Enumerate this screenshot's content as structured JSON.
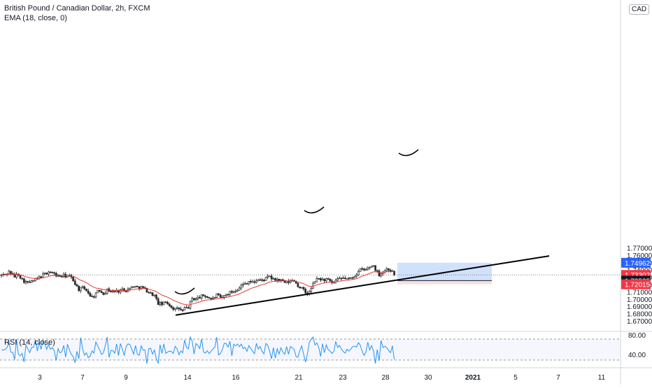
{
  "header": {
    "title": "British Pound / Canadian Dollar, 2h, FXCM",
    "indicator": "EMA (18, close, 0)",
    "currency": "CAD"
  },
  "rsi": {
    "label": "RSI (14, close)"
  },
  "colors": {
    "up": "#26a69a",
    "down": "#333333",
    "candle": "#2b2b2b",
    "ema": "#e53935",
    "rsi": "#2196f3",
    "profit_zone": "#c8dcfc",
    "loss_zone": "#fadcdc",
    "target_tag": "#2962ff",
    "stop_tag": "#f23645",
    "price_tag": "#f23645",
    "entry_tag": "#131722"
  },
  "chart_data": {
    "type": "candlestick",
    "title": "British Pound / Canadian Dollar, 2h, FXCM",
    "y_unit": "CAD",
    "ylim": [
      1.665,
      1.775
    ],
    "y_ticks": [
      "1.77000",
      "1.76000",
      "1.75000",
      "1.74000",
      "1.73000",
      "1.72000",
      "1.71000",
      "1.70000",
      "1.69000",
      "1.68000",
      "1.67000"
    ],
    "x_ticks": [
      "3",
      "7",
      "9",
      "14",
      "16",
      "21",
      "23",
      "28",
      "30",
      "2021",
      "5",
      "7",
      "11"
    ],
    "grid": false,
    "price_tags": {
      "target": "1.74962",
      "last": "1.73302",
      "countdown": "01:48",
      "entry": "1.72525",
      "stop": "1.72015"
    },
    "price_path": [
      [
        0,
        1.732
      ],
      [
        8,
        1.734
      ],
      [
        14,
        1.738
      ],
      [
        20,
        1.73
      ],
      [
        26,
        1.735
      ],
      [
        32,
        1.726
      ],
      [
        40,
        1.722
      ],
      [
        46,
        1.724
      ],
      [
        54,
        1.728
      ],
      [
        62,
        1.733
      ],
      [
        70,
        1.738
      ],
      [
        76,
        1.735
      ],
      [
        84,
        1.731
      ],
      [
        92,
        1.732
      ],
      [
        100,
        1.731
      ],
      [
        106,
        1.724
      ],
      [
        112,
        1.713
      ],
      [
        118,
        1.715
      ],
      [
        124,
        1.712
      ],
      [
        128,
        1.706
      ],
      [
        132,
        1.702
      ],
      [
        136,
        1.707
      ],
      [
        142,
        1.712
      ],
      [
        148,
        1.708
      ],
      [
        154,
        1.713
      ],
      [
        160,
        1.71
      ],
      [
        168,
        1.711
      ],
      [
        176,
        1.713
      ],
      [
        184,
        1.713
      ],
      [
        190,
        1.718
      ],
      [
        196,
        1.716
      ],
      [
        202,
        1.716
      ],
      [
        208,
        1.713
      ],
      [
        214,
        1.708
      ],
      [
        220,
        1.706
      ],
      [
        226,
        1.694
      ],
      [
        232,
        1.693
      ],
      [
        238,
        1.696
      ],
      [
        244,
        1.69
      ],
      [
        250,
        1.686
      ],
      [
        256,
        1.687
      ],
      [
        260,
        1.683
      ],
      [
        264,
        1.687
      ],
      [
        270,
        1.689
      ],
      [
        274,
        1.701
      ],
      [
        280,
        1.7
      ],
      [
        286,
        1.703
      ],
      [
        292,
        1.705
      ],
      [
        298,
        1.702
      ],
      [
        304,
        1.7
      ],
      [
        310,
        1.706
      ],
      [
        316,
        1.7
      ],
      [
        320,
        1.704
      ],
      [
        326,
        1.708
      ],
      [
        332,
        1.71
      ],
      [
        338,
        1.713
      ],
      [
        344,
        1.718
      ],
      [
        350,
        1.721
      ],
      [
        356,
        1.725
      ],
      [
        362,
        1.722
      ],
      [
        368,
        1.727
      ],
      [
        374,
        1.725
      ],
      [
        380,
        1.728
      ],
      [
        386,
        1.731
      ],
      [
        390,
        1.726
      ],
      [
        396,
        1.727
      ],
      [
        402,
        1.725
      ],
      [
        408,
        1.722
      ],
      [
        414,
        1.724
      ],
      [
        420,
        1.726
      ],
      [
        426,
        1.718
      ],
      [
        432,
        1.714
      ],
      [
        438,
        1.707
      ],
      [
        442,
        1.709
      ],
      [
        446,
        1.717
      ],
      [
        450,
        1.725
      ],
      [
        456,
        1.728
      ],
      [
        462,
        1.726
      ],
      [
        468,
        1.727
      ],
      [
        474,
        1.721
      ],
      [
        480,
        1.725
      ],
      [
        486,
        1.727
      ],
      [
        492,
        1.729
      ],
      [
        498,
        1.727
      ],
      [
        504,
        1.73
      ],
      [
        510,
        1.735
      ],
      [
        516,
        1.741
      ],
      [
        522,
        1.739
      ],
      [
        528,
        1.744
      ],
      [
        534,
        1.746
      ],
      [
        538,
        1.738
      ],
      [
        542,
        1.734
      ],
      [
        548,
        1.738
      ],
      [
        554,
        1.742
      ],
      [
        560,
        1.738
      ],
      [
        565,
        1.732
      ]
    ],
    "indicators": [
      {
        "name": "EMA (18, close, 0)",
        "type": "line"
      },
      {
        "name": "RSI (14, close)",
        "type": "line",
        "levels": [
          "80.00",
          "40.00"
        ]
      }
    ],
    "drawings": [
      {
        "type": "trendline",
        "from": [
          "14",
          1.678
        ],
        "to": [
          "5",
          1.759
        ]
      },
      {
        "type": "long_position",
        "entry": 1.72525,
        "target": 1.74962,
        "stop": 1.72015
      }
    ]
  }
}
